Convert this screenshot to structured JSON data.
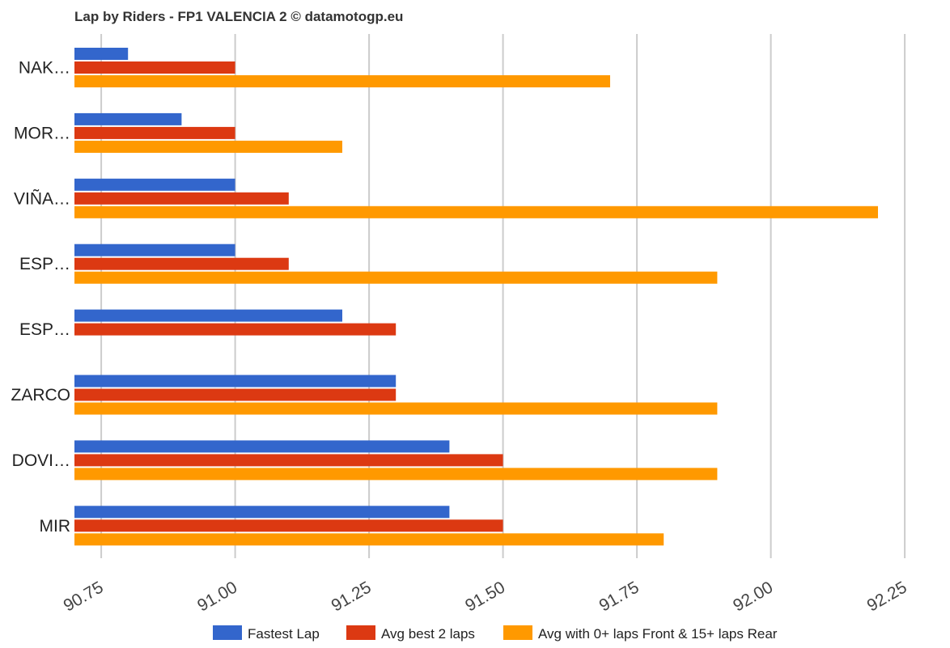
{
  "chart_data": {
    "type": "bar",
    "orientation": "horizontal",
    "title": "Lap by Riders - FP1 VALENCIA 2 © datamotogp.eu",
    "categories": [
      "NAK…",
      "MOR…",
      "VIÑA…",
      "ESP…",
      "ESP…",
      "ZARCO",
      "DOVI…",
      "MIR"
    ],
    "series": [
      {
        "name": "Fastest Lap",
        "color": "#3366cc",
        "values": [
          90.8,
          90.9,
          91.0,
          91.0,
          91.2,
          91.3,
          91.4,
          91.4
        ]
      },
      {
        "name": "Avg best 2 laps",
        "color": "#dc3912",
        "values": [
          91.0,
          91.0,
          91.1,
          91.1,
          91.3,
          91.3,
          91.5,
          91.5
        ]
      },
      {
        "name": "Avg with 0+ laps Front & 15+ laps Rear",
        "color": "#ff9900",
        "values": [
          91.7,
          91.2,
          92.2,
          91.9,
          null,
          91.9,
          91.9,
          91.8
        ]
      }
    ],
    "xlim": [
      90.7,
      92.25
    ],
    "x_ticks": [
      90.75,
      91.0,
      91.25,
      91.5,
      91.75,
      92.0,
      92.25
    ],
    "x_tick_labels": [
      "90.75",
      "91.00",
      "91.25",
      "91.50",
      "91.75",
      "92.00",
      "92.25"
    ],
    "grid": true,
    "legend_position": "bottom"
  }
}
